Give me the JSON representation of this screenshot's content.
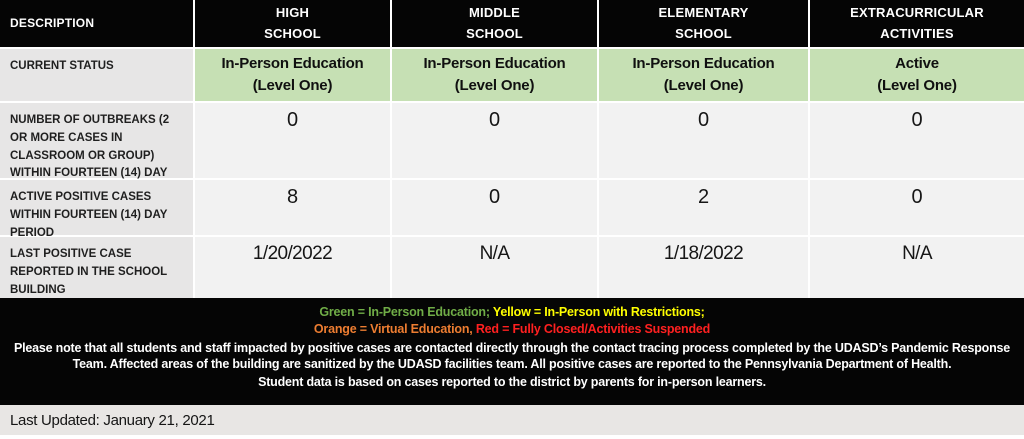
{
  "table": {
    "header": {
      "description": "DESCRIPTION",
      "columns": [
        "HIGH\nSCHOOL",
        "MIDDLE\nSCHOOL",
        "ELEMENTARY\nSCHOOL",
        "EXTRACURRICULAR\nACTIVITIES"
      ]
    },
    "rows": [
      {
        "label": "CURRENT STATUS",
        "values": [
          "In-Person Education\n(Level One)",
          "In-Person Education\n(Level One)",
          "In-Person Education\n(Level One)",
          "Active\n(Level One)"
        ]
      },
      {
        "label": "NUMBER OF OUTBREAKS (2 OR MORE CASES IN CLASSROOM OR GROUP) WITHIN FOURTEEN (14) DAY PERIOD",
        "values": [
          "0",
          "0",
          "0",
          "0"
        ]
      },
      {
        "label": "ACTIVE POSITIVE CASES WITHIN FOURTEEN (14) DAY PERIOD",
        "values": [
          "8",
          "0",
          "2",
          "0"
        ]
      },
      {
        "label": "LAST POSITIVE CASE REPORTED IN THE SCHOOL BUILDING",
        "values": [
          "1/20/2022",
          "N/A",
          "1/18/2022",
          "N/A"
        ]
      }
    ]
  },
  "footer": {
    "legend": [
      {
        "text": "Green = In-Person Education;",
        "color": "#70ad47"
      },
      {
        "text": "Yellow = In-Person with Restrictions;",
        "color": "#ffff00"
      },
      {
        "text": "Orange = Virtual Education,",
        "color": "#ed7d31"
      },
      {
        "text": "Red = Fully Closed/Activities Suspended",
        "color": "#ff2020"
      }
    ],
    "note_1": "Please note that all students and staff impacted by positive cases are contacted directly through the contact tracing process completed by the UDASD’s Pandemic Response Team.  Affected areas of the building are sanitized by the UDASD facilities team.  All positive cases are reported to the Pennsylvania Department of Health.",
    "note_2": "Student data is based on cases reported to the district by parents for in-person learners.",
    "last_updated": "Last Updated: January 21, 2021"
  },
  "colors": {
    "status_green_cell": "#c6e0b4",
    "label_column_gray": "#e7e6e6",
    "data_cell_gray": "#f2f2f2",
    "header_black": "#050505"
  }
}
